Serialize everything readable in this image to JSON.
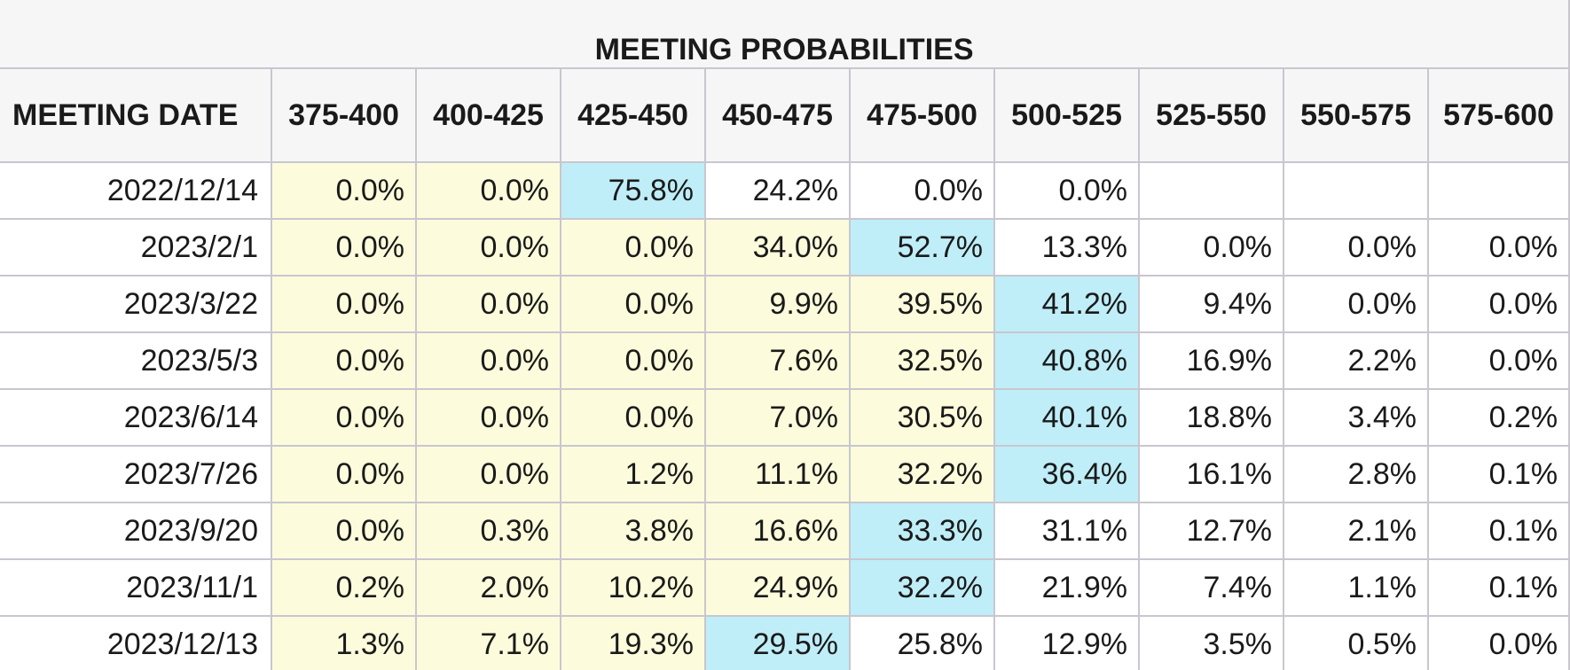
{
  "table": {
    "title": "MEETING PROBABILITIES",
    "date_header": "MEETING DATE",
    "columns": [
      "375-400",
      "400-425",
      "425-450",
      "450-475",
      "475-500",
      "500-525",
      "525-550",
      "550-575",
      "575-600"
    ],
    "colors": {
      "lower": "#fcfcdc",
      "max": "#bfeef8",
      "higher": "#ffffff"
    },
    "rows": [
      {
        "date": "2022/12/14",
        "values": [
          "0.0%",
          "0.0%",
          "75.8%",
          "24.2%",
          "0.0%",
          "0.0%",
          "",
          "",
          ""
        ],
        "max_index": 2
      },
      {
        "date": "2023/2/1",
        "values": [
          "0.0%",
          "0.0%",
          "0.0%",
          "34.0%",
          "52.7%",
          "13.3%",
          "0.0%",
          "0.0%",
          "0.0%"
        ],
        "max_index": 4
      },
      {
        "date": "2023/3/22",
        "values": [
          "0.0%",
          "0.0%",
          "0.0%",
          "9.9%",
          "39.5%",
          "41.2%",
          "9.4%",
          "0.0%",
          "0.0%"
        ],
        "max_index": 5
      },
      {
        "date": "2023/5/3",
        "values": [
          "0.0%",
          "0.0%",
          "0.0%",
          "7.6%",
          "32.5%",
          "40.8%",
          "16.9%",
          "2.2%",
          "0.0%"
        ],
        "max_index": 5
      },
      {
        "date": "2023/6/14",
        "values": [
          "0.0%",
          "0.0%",
          "0.0%",
          "7.0%",
          "30.5%",
          "40.1%",
          "18.8%",
          "3.4%",
          "0.2%"
        ],
        "max_index": 5
      },
      {
        "date": "2023/7/26",
        "values": [
          "0.0%",
          "0.0%",
          "1.2%",
          "11.1%",
          "32.2%",
          "36.4%",
          "16.1%",
          "2.8%",
          "0.1%"
        ],
        "max_index": 5
      },
      {
        "date": "2023/9/20",
        "values": [
          "0.0%",
          "0.3%",
          "3.8%",
          "16.6%",
          "33.3%",
          "31.1%",
          "12.7%",
          "2.1%",
          "0.1%"
        ],
        "max_index": 4
      },
      {
        "date": "2023/11/1",
        "values": [
          "0.2%",
          "2.0%",
          "10.2%",
          "24.9%",
          "32.2%",
          "21.9%",
          "7.4%",
          "1.1%",
          "0.1%"
        ],
        "max_index": 4
      },
      {
        "date": "2023/12/13",
        "values": [
          "1.3%",
          "7.1%",
          "19.3%",
          "29.5%",
          "25.8%",
          "12.9%",
          "3.5%",
          "0.5%",
          "0.0%"
        ],
        "max_index": 3
      }
    ]
  }
}
